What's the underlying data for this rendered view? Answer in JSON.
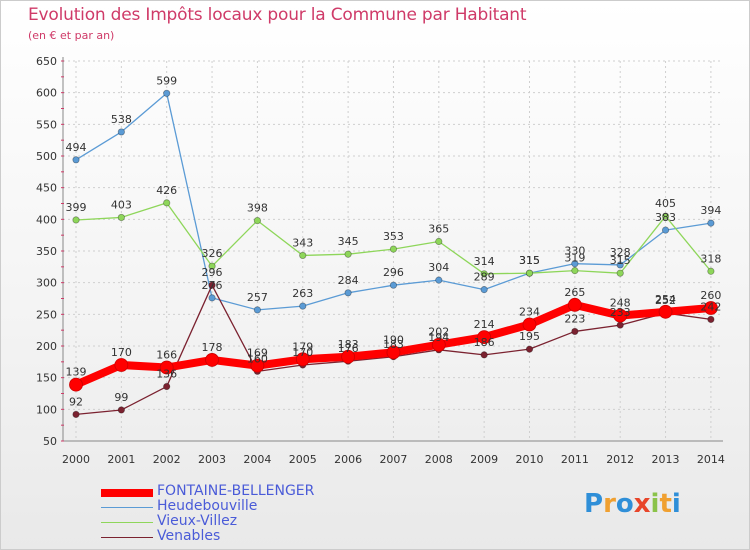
{
  "header": {
    "title": "Evolution des Impôts locaux pour la Commune par Habitant",
    "subtitle": "(en € et par an)"
  },
  "brand": {
    "letters": [
      "P",
      "r",
      "o",
      "x",
      "i",
      "t",
      "i"
    ],
    "colors": [
      "#2f8fd8",
      "#f0a030",
      "#2f8fd8",
      "#e8452a",
      "#8bc34a",
      "#f0a030",
      "#2f8fd8"
    ]
  },
  "chart_data": {
    "type": "line",
    "x": [
      "2000",
      "2001",
      "2002",
      "2003",
      "2004",
      "2005",
      "2006",
      "2007",
      "2008",
      "2009",
      "2010",
      "2011",
      "2012",
      "2013",
      "2014"
    ],
    "ylim": [
      50,
      650
    ],
    "yticks": [
      50,
      100,
      150,
      200,
      250,
      300,
      350,
      400,
      450,
      500,
      550,
      600,
      650
    ],
    "grid": true,
    "legend_position": "bottom-left",
    "series": [
      {
        "name": "Heudebouville",
        "color": "#5b9bd5",
        "values": [
          494,
          538,
          599,
          276,
          257,
          263,
          284,
          296,
          304,
          289,
          315,
          330,
          328,
          383,
          394
        ],
        "labels": [
          "494",
          "538",
          "599",
          "276",
          "257",
          "263",
          "284",
          "296",
          "304",
          "289",
          "315",
          "330",
          "328",
          "383",
          "394"
        ]
      },
      {
        "name": "Vieux-Villez",
        "color": "#8ed65a",
        "values": [
          399,
          403,
          426,
          326,
          398,
          343,
          345,
          353,
          365,
          314,
          315,
          319,
          315,
          405,
          318
        ],
        "labels": [
          "399",
          "403",
          "426",
          "326",
          "398",
          "343",
          "345",
          "353",
          "365",
          "314",
          "315",
          "319",
          "315",
          "405",
          "318"
        ]
      },
      {
        "name": "Venables",
        "color": "#7b2230",
        "values": [
          92,
          99,
          136,
          296,
          160,
          170,
          176,
          183,
          194,
          186,
          195,
          223,
          233,
          252,
          242
        ],
        "labels": [
          "92",
          "99",
          "136",
          "296",
          "160",
          "170",
          "176",
          "183",
          "194",
          "186",
          "195",
          "223",
          "233",
          "252",
          "242"
        ]
      },
      {
        "name": "FONTAINE-BELLENGER",
        "color": "#ff0000",
        "values": [
          139,
          170,
          166,
          178,
          169,
          179,
          183,
          190,
          202,
          214,
          234,
          265,
          248,
          254,
          260
        ],
        "labels": [
          "139",
          "170",
          "166",
          "178",
          "169",
          "179",
          "183",
          "190",
          "202",
          "214",
          "234",
          "265",
          "248",
          "254",
          "260"
        ]
      }
    ],
    "legend": [
      "FONTAINE-BELLENGER",
      "Heudebouville",
      "Vieux-Villez",
      "Venables"
    ]
  }
}
